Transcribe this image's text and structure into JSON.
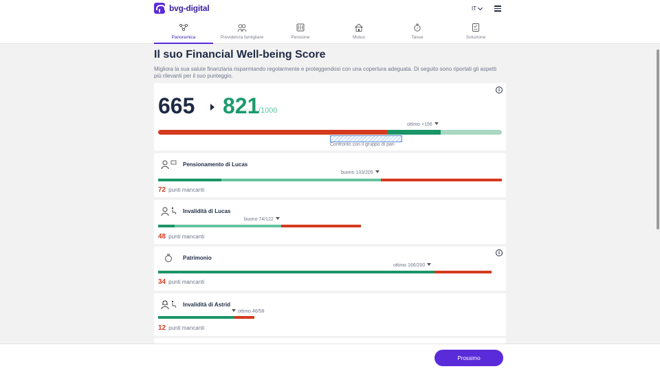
{
  "header": {
    "logo_text": "bvg-digital",
    "language": "IT"
  },
  "tabs": [
    {
      "label": "Panoramica",
      "active": true,
      "icon": "overview-icon"
    },
    {
      "label": "Previdenza famigliare",
      "active": false,
      "icon": "family-icon"
    },
    {
      "label": "Pensione",
      "active": false,
      "icon": "pension-icon"
    },
    {
      "label": "Mutuo",
      "active": false,
      "icon": "house-icon"
    },
    {
      "label": "Tasse",
      "active": false,
      "icon": "tax-icon"
    },
    {
      "label": "Soluzione",
      "active": false,
      "icon": "solution-icon"
    }
  ],
  "main": {
    "title": "Il suo Financial Well-being Score",
    "intro": "Migliora la sua salute finanziaria risparmiando regolarmente e proteggendosi con una copertura adeguata. Di seguito sono riportati gli aspetti più rilevanti per il suo punteggio."
  },
  "score": {
    "current": "665",
    "target": "821",
    "max": "/1000",
    "marker_label": "ottimo +156",
    "peer_label": "Confronto con il gruppo di pari",
    "segments": {
      "red": 0.665,
      "dark_green": 0.156,
      "light_green": 0.179
    }
  },
  "goals": [
    {
      "title": "Pensionamento di Lucas",
      "marker_label": "buono 133/205",
      "missing_value": "72",
      "missing_text": "punti mancanti",
      "icon": "retirement-icon"
    },
    {
      "title": "Invalidità di Lucas",
      "marker_label": "buono 74/122",
      "missing_value": "48",
      "missing_text": "punti mancanti",
      "icon": "disability-icon"
    },
    {
      "title": "Patrimonio",
      "marker_label": "ottimo 166/200",
      "missing_value": "34",
      "missing_text": "punti mancanti",
      "icon": "wealth-icon"
    },
    {
      "title": "Invalidità di Astrid",
      "marker_label": "ottimo 46/58",
      "missing_value": "12",
      "missing_text": "punti mancanti",
      "icon": "disability-icon"
    }
  ],
  "footer": {
    "next_label": "Prossimo"
  },
  "colors": {
    "brand": "#5a2bd8",
    "navy": "#1f2a44",
    "green": "#1a9568",
    "light_green": "#66c3a1",
    "red": "#d43a1e"
  }
}
